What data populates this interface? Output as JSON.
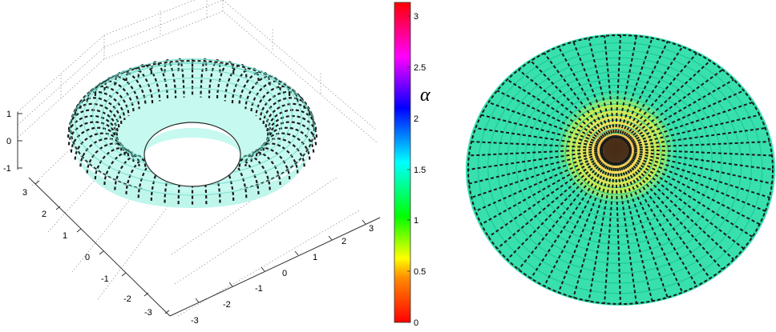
{
  "chart_data": [
    {
      "type": "surface3d",
      "surface": "torus",
      "title": "",
      "wireframe_colors": [
        "#7fffe6",
        "#1a1a1a"
      ],
      "grid": true,
      "x_ticks": [
        "-3",
        "-2",
        "-1",
        "0",
        "1",
        "2",
        "3"
      ],
      "y_ticks": [
        "-3",
        "-2",
        "-1",
        "0",
        "1",
        "2",
        "3"
      ],
      "z_ticks": [
        "-1",
        "0",
        "1"
      ],
      "xlim": [
        -3,
        3
      ],
      "ylim": [
        -3,
        3
      ],
      "zlim": [
        -1,
        1
      ]
    },
    {
      "type": "colorbar",
      "label": "α",
      "ticks": [
        "0",
        "0.5",
        "1",
        "1.5",
        "2",
        "2.5",
        "3"
      ],
      "range": [
        0,
        3.14
      ],
      "colormap": "hsv"
    },
    {
      "type": "surface3d",
      "surface": "torus-top-view",
      "title": "",
      "colors": [
        "#3ce3b0",
        "#f6ea5a",
        "#1a1a1a"
      ],
      "grid": false
    }
  ]
}
